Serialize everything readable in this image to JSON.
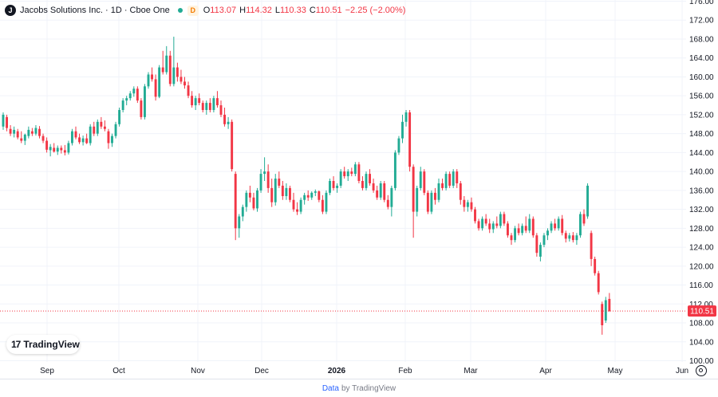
{
  "legend": {
    "symbol_icon": "jacobs-j-logo",
    "symbol_letter": "J",
    "title": "Jacobs Solutions Inc. · 1D · Cboe One",
    "badge": "D",
    "o_label": "O",
    "o_value": "113.07",
    "h_label": "H",
    "h_value": "114.32",
    "l_label": "L",
    "l_value": "110.33",
    "c_label": "C",
    "c_value": "110.51",
    "change": "−2.25 (−2.00%)"
  },
  "logo": {
    "mark": "17",
    "text": "TradingView"
  },
  "footer": {
    "link": "Data",
    "text": "by TradingView"
  },
  "colors": {
    "up": "#22ab94",
    "down": "#f23645",
    "grid": "#f0f3fa",
    "axis_text": "#131722"
  },
  "chart_data": {
    "type": "candlestick",
    "title": "Jacobs Solutions Inc. · 1D · Cboe One",
    "ylim": [
      100,
      176
    ],
    "y_ticks": [
      "100.00",
      "104.00",
      "108.00",
      "112.00",
      "116.00",
      "120.00",
      "124.00",
      "128.00",
      "132.00",
      "136.00",
      "140.00",
      "144.00",
      "148.00",
      "152.00",
      "156.00",
      "160.00",
      "164.00",
      "168.00",
      "172.00",
      "176.00"
    ],
    "x_labels": [
      "Sep",
      "Oct",
      "Nov",
      "Dec",
      "2026",
      "Feb",
      "Mar",
      "Apr",
      "May",
      "Jun"
    ],
    "last_price": "110.51",
    "grid": true,
    "candles": [
      {
        "o": 149.5,
        "h": 152.5,
        "l": 148.8,
        "c": 152.0
      },
      {
        "o": 151.5,
        "h": 152.0,
        "l": 148.5,
        "c": 149.2
      },
      {
        "o": 149.0,
        "h": 149.8,
        "l": 147.5,
        "c": 148.0
      },
      {
        "o": 148.0,
        "h": 149.5,
        "l": 147.2,
        "c": 148.8
      },
      {
        "o": 148.5,
        "h": 149.0,
        "l": 146.8,
        "c": 147.2
      },
      {
        "o": 147.0,
        "h": 148.5,
        "l": 146.0,
        "c": 146.5
      },
      {
        "o": 146.5,
        "h": 148.0,
        "l": 145.6,
        "c": 147.8
      },
      {
        "o": 147.5,
        "h": 149.5,
        "l": 147.0,
        "c": 148.8
      },
      {
        "o": 148.5,
        "h": 149.2,
        "l": 147.5,
        "c": 148.0
      },
      {
        "o": 148.0,
        "h": 149.8,
        "l": 147.6,
        "c": 149.2
      },
      {
        "o": 149.0,
        "h": 149.6,
        "l": 147.0,
        "c": 147.5
      },
      {
        "o": 147.5,
        "h": 148.0,
        "l": 146.0,
        "c": 146.5
      },
      {
        "o": 146.5,
        "h": 147.2,
        "l": 144.0,
        "c": 144.6
      },
      {
        "o": 144.5,
        "h": 145.8,
        "l": 143.2,
        "c": 145.2
      },
      {
        "o": 145.0,
        "h": 146.0,
        "l": 144.0,
        "c": 144.2
      },
      {
        "o": 144.2,
        "h": 145.5,
        "l": 143.5,
        "c": 145.0
      },
      {
        "o": 145.0,
        "h": 145.5,
        "l": 143.8,
        "c": 144.5
      },
      {
        "o": 144.5,
        "h": 145.6,
        "l": 143.4,
        "c": 144.0
      },
      {
        "o": 144.0,
        "h": 146.5,
        "l": 143.6,
        "c": 146.0
      },
      {
        "o": 146.0,
        "h": 149.0,
        "l": 145.5,
        "c": 148.5
      },
      {
        "o": 148.5,
        "h": 149.5,
        "l": 146.8,
        "c": 147.2
      },
      {
        "o": 147.2,
        "h": 148.0,
        "l": 145.8,
        "c": 146.2
      },
      {
        "o": 146.2,
        "h": 147.6,
        "l": 145.5,
        "c": 147.0
      },
      {
        "o": 147.0,
        "h": 148.0,
        "l": 145.8,
        "c": 146.0
      },
      {
        "o": 146.0,
        "h": 150.0,
        "l": 145.5,
        "c": 149.5
      },
      {
        "o": 149.5,
        "h": 150.5,
        "l": 147.5,
        "c": 148.0
      },
      {
        "o": 148.0,
        "h": 151.0,
        "l": 147.5,
        "c": 150.5
      },
      {
        "o": 150.5,
        "h": 151.5,
        "l": 149.0,
        "c": 149.5
      },
      {
        "o": 149.5,
        "h": 150.8,
        "l": 148.5,
        "c": 149.0
      },
      {
        "o": 148.5,
        "h": 149.0,
        "l": 144.8,
        "c": 146.0
      },
      {
        "o": 146.0,
        "h": 148.0,
        "l": 145.2,
        "c": 147.5
      },
      {
        "o": 147.5,
        "h": 150.5,
        "l": 147.0,
        "c": 150.0
      },
      {
        "o": 150.0,
        "h": 153.5,
        "l": 149.5,
        "c": 153.0
      },
      {
        "o": 153.0,
        "h": 155.5,
        "l": 152.5,
        "c": 155.0
      },
      {
        "o": 155.0,
        "h": 156.0,
        "l": 154.0,
        "c": 155.5
      },
      {
        "o": 155.5,
        "h": 157.0,
        "l": 155.0,
        "c": 156.5
      },
      {
        "o": 156.5,
        "h": 158.0,
        "l": 155.8,
        "c": 157.5
      },
      {
        "o": 157.5,
        "h": 158.0,
        "l": 154.5,
        "c": 155.0
      },
      {
        "o": 155.0,
        "h": 155.5,
        "l": 151.0,
        "c": 151.5
      },
      {
        "o": 151.5,
        "h": 158.5,
        "l": 151.0,
        "c": 158.0
      },
      {
        "o": 158.0,
        "h": 161.0,
        "l": 157.5,
        "c": 160.5
      },
      {
        "o": 160.5,
        "h": 162.0,
        "l": 159.0,
        "c": 159.5
      },
      {
        "o": 159.5,
        "h": 160.5,
        "l": 155.0,
        "c": 155.8
      },
      {
        "o": 155.8,
        "h": 162.5,
        "l": 155.5,
        "c": 162.0
      },
      {
        "o": 162.0,
        "h": 165.5,
        "l": 160.5,
        "c": 161.0
      },
      {
        "o": 161.0,
        "h": 166.5,
        "l": 160.5,
        "c": 164.5
      },
      {
        "o": 164.5,
        "h": 165.5,
        "l": 158.0,
        "c": 158.5
      },
      {
        "o": 158.5,
        "h": 168.5,
        "l": 158.0,
        "c": 162.0
      },
      {
        "o": 162.0,
        "h": 163.0,
        "l": 159.0,
        "c": 160.0
      },
      {
        "o": 160.0,
        "h": 161.5,
        "l": 158.5,
        "c": 159.0
      },
      {
        "o": 159.0,
        "h": 160.0,
        "l": 157.5,
        "c": 158.2
      },
      {
        "o": 158.2,
        "h": 159.0,
        "l": 155.5,
        "c": 156.0
      },
      {
        "o": 156.0,
        "h": 157.0,
        "l": 153.5,
        "c": 154.0
      },
      {
        "o": 154.0,
        "h": 156.0,
        "l": 153.0,
        "c": 155.5
      },
      {
        "o": 155.5,
        "h": 156.5,
        "l": 154.0,
        "c": 154.5
      },
      {
        "o": 154.5,
        "h": 155.0,
        "l": 152.5,
        "c": 153.0
      },
      {
        "o": 153.0,
        "h": 155.0,
        "l": 152.0,
        "c": 154.5
      },
      {
        "o": 154.5,
        "h": 155.5,
        "l": 152.5,
        "c": 153.0
      },
      {
        "o": 153.0,
        "h": 156.0,
        "l": 152.5,
        "c": 155.5
      },
      {
        "o": 155.5,
        "h": 157.0,
        "l": 153.5,
        "c": 154.0
      },
      {
        "o": 154.0,
        "h": 155.0,
        "l": 151.5,
        "c": 152.0
      },
      {
        "o": 152.0,
        "h": 153.5,
        "l": 149.5,
        "c": 150.0
      },
      {
        "o": 150.0,
        "h": 151.5,
        "l": 149.0,
        "c": 150.5
      },
      {
        "o": 150.5,
        "h": 151.0,
        "l": 140.0,
        "c": 140.5
      },
      {
        "o": 139.5,
        "h": 140.0,
        "l": 125.5,
        "c": 128.0
      },
      {
        "o": 128.0,
        "h": 131.0,
        "l": 126.0,
        "c": 130.5
      },
      {
        "o": 130.5,
        "h": 133.0,
        "l": 129.5,
        "c": 132.5
      },
      {
        "o": 132.5,
        "h": 136.0,
        "l": 131.5,
        "c": 135.5
      },
      {
        "o": 135.5,
        "h": 137.0,
        "l": 133.5,
        "c": 134.5
      },
      {
        "o": 134.5,
        "h": 135.5,
        "l": 131.8,
        "c": 132.2
      },
      {
        "o": 132.2,
        "h": 136.5,
        "l": 131.5,
        "c": 136.0
      },
      {
        "o": 136.0,
        "h": 140.5,
        "l": 135.5,
        "c": 139.5
      },
      {
        "o": 139.5,
        "h": 143.0,
        "l": 138.0,
        "c": 140.0
      },
      {
        "o": 140.0,
        "h": 141.5,
        "l": 135.5,
        "c": 136.5
      },
      {
        "o": 136.5,
        "h": 138.5,
        "l": 132.5,
        "c": 133.5
      },
      {
        "o": 133.5,
        "h": 139.5,
        "l": 132.8,
        "c": 138.5
      },
      {
        "o": 138.5,
        "h": 140.0,
        "l": 136.5,
        "c": 137.0
      },
      {
        "o": 137.0,
        "h": 138.0,
        "l": 134.0,
        "c": 134.8
      },
      {
        "o": 134.8,
        "h": 137.5,
        "l": 134.0,
        "c": 136.5
      },
      {
        "o": 136.5,
        "h": 137.0,
        "l": 133.5,
        "c": 134.0
      },
      {
        "o": 134.0,
        "h": 135.5,
        "l": 131.5,
        "c": 132.0
      },
      {
        "o": 132.0,
        "h": 133.5,
        "l": 130.8,
        "c": 131.5
      },
      {
        "o": 131.5,
        "h": 134.5,
        "l": 131.0,
        "c": 134.0
      },
      {
        "o": 134.0,
        "h": 135.5,
        "l": 133.0,
        "c": 135.0
      },
      {
        "o": 135.0,
        "h": 136.0,
        "l": 133.8,
        "c": 134.5
      },
      {
        "o": 134.5,
        "h": 135.8,
        "l": 134.0,
        "c": 135.5
      },
      {
        "o": 135.5,
        "h": 136.2,
        "l": 134.8,
        "c": 135.8
      },
      {
        "o": 135.8,
        "h": 136.0,
        "l": 133.5,
        "c": 134.0
      },
      {
        "o": 134.0,
        "h": 135.0,
        "l": 131.0,
        "c": 131.5
      },
      {
        "o": 131.5,
        "h": 136.0,
        "l": 131.0,
        "c": 135.5
      },
      {
        "o": 135.5,
        "h": 138.5,
        "l": 135.0,
        "c": 138.0
      },
      {
        "o": 138.0,
        "h": 139.0,
        "l": 136.0,
        "c": 136.5
      },
      {
        "o": 136.5,
        "h": 137.5,
        "l": 135.5,
        "c": 137.0
      },
      {
        "o": 137.0,
        "h": 140.5,
        "l": 136.5,
        "c": 140.0
      },
      {
        "o": 140.0,
        "h": 141.0,
        "l": 138.5,
        "c": 139.0
      },
      {
        "o": 139.0,
        "h": 140.5,
        "l": 138.0,
        "c": 140.0
      },
      {
        "o": 140.0,
        "h": 140.8,
        "l": 139.0,
        "c": 139.5
      },
      {
        "o": 139.5,
        "h": 142.0,
        "l": 139.0,
        "c": 141.5
      },
      {
        "o": 141.5,
        "h": 142.0,
        "l": 137.5,
        "c": 138.0
      },
      {
        "o": 138.0,
        "h": 139.0,
        "l": 136.0,
        "c": 136.5
      },
      {
        "o": 136.5,
        "h": 140.0,
        "l": 136.0,
        "c": 139.5
      },
      {
        "o": 139.5,
        "h": 140.5,
        "l": 137.0,
        "c": 137.5
      },
      {
        "o": 137.5,
        "h": 138.5,
        "l": 135.5,
        "c": 136.0
      },
      {
        "o": 136.0,
        "h": 137.0,
        "l": 134.0,
        "c": 134.5
      },
      {
        "o": 134.5,
        "h": 138.0,
        "l": 134.0,
        "c": 137.5
      },
      {
        "o": 137.5,
        "h": 138.0,
        "l": 133.5,
        "c": 134.0
      },
      {
        "o": 134.0,
        "h": 135.0,
        "l": 132.0,
        "c": 132.5
      },
      {
        "o": 132.5,
        "h": 137.0,
        "l": 130.5,
        "c": 136.5
      },
      {
        "o": 136.5,
        "h": 144.5,
        "l": 136.0,
        "c": 144.0
      },
      {
        "o": 144.0,
        "h": 147.5,
        "l": 143.5,
        "c": 147.0
      },
      {
        "o": 147.0,
        "h": 152.0,
        "l": 146.0,
        "c": 150.5
      },
      {
        "o": 150.5,
        "h": 153.0,
        "l": 149.5,
        "c": 152.5
      },
      {
        "o": 152.5,
        "h": 153.0,
        "l": 140.0,
        "c": 141.0
      },
      {
        "o": 141.0,
        "h": 141.5,
        "l": 126.0,
        "c": 131.5
      },
      {
        "o": 131.5,
        "h": 137.0,
        "l": 130.5,
        "c": 136.5
      },
      {
        "o": 136.5,
        "h": 141.0,
        "l": 136.0,
        "c": 140.0
      },
      {
        "o": 140.0,
        "h": 140.5,
        "l": 135.0,
        "c": 135.5
      },
      {
        "o": 135.5,
        "h": 136.0,
        "l": 131.0,
        "c": 131.5
      },
      {
        "o": 131.5,
        "h": 136.0,
        "l": 131.0,
        "c": 135.5
      },
      {
        "o": 135.5,
        "h": 136.5,
        "l": 133.0,
        "c": 134.0
      },
      {
        "o": 134.0,
        "h": 138.5,
        "l": 133.5,
        "c": 137.5
      },
      {
        "o": 137.5,
        "h": 138.5,
        "l": 136.0,
        "c": 136.5
      },
      {
        "o": 136.5,
        "h": 140.0,
        "l": 136.0,
        "c": 139.5
      },
      {
        "o": 139.5,
        "h": 140.0,
        "l": 136.5,
        "c": 137.0
      },
      {
        "o": 137.0,
        "h": 140.5,
        "l": 136.5,
        "c": 140.0
      },
      {
        "o": 140.0,
        "h": 140.5,
        "l": 136.5,
        "c": 137.5
      },
      {
        "o": 137.5,
        "h": 138.0,
        "l": 133.0,
        "c": 134.0
      },
      {
        "o": 134.0,
        "h": 134.8,
        "l": 131.5,
        "c": 132.5
      },
      {
        "o": 132.5,
        "h": 134.0,
        "l": 131.5,
        "c": 133.5
      },
      {
        "o": 133.5,
        "h": 134.5,
        "l": 131.5,
        "c": 132.0
      },
      {
        "o": 132.0,
        "h": 132.5,
        "l": 129.0,
        "c": 129.5
      },
      {
        "o": 129.5,
        "h": 130.0,
        "l": 127.5,
        "c": 128.0
      },
      {
        "o": 128.0,
        "h": 130.5,
        "l": 127.5,
        "c": 130.0
      },
      {
        "o": 130.0,
        "h": 131.0,
        "l": 128.5,
        "c": 129.0
      },
      {
        "o": 129.0,
        "h": 130.0,
        "l": 127.0,
        "c": 127.8
      },
      {
        "o": 127.8,
        "h": 129.5,
        "l": 127.0,
        "c": 129.0
      },
      {
        "o": 129.0,
        "h": 130.5,
        "l": 128.0,
        "c": 128.5
      },
      {
        "o": 128.5,
        "h": 131.5,
        "l": 128.0,
        "c": 131.0
      },
      {
        "o": 131.0,
        "h": 131.5,
        "l": 128.5,
        "c": 129.0
      },
      {
        "o": 129.0,
        "h": 129.5,
        "l": 126.0,
        "c": 126.5
      },
      {
        "o": 126.5,
        "h": 127.0,
        "l": 124.5,
        "c": 125.5
      },
      {
        "o": 125.5,
        "h": 128.5,
        "l": 125.0,
        "c": 128.0
      },
      {
        "o": 128.0,
        "h": 129.0,
        "l": 126.5,
        "c": 127.0
      },
      {
        "o": 127.0,
        "h": 129.0,
        "l": 126.5,
        "c": 128.5
      },
      {
        "o": 128.5,
        "h": 130.5,
        "l": 127.0,
        "c": 127.5
      },
      {
        "o": 127.5,
        "h": 131.0,
        "l": 127.0,
        "c": 130.0
      },
      {
        "o": 130.0,
        "h": 130.5,
        "l": 126.0,
        "c": 126.5
      },
      {
        "o": 126.5,
        "h": 127.0,
        "l": 122.0,
        "c": 122.8
      },
      {
        "o": 122.0,
        "h": 125.0,
        "l": 121.0,
        "c": 124.5
      },
      {
        "o": 124.5,
        "h": 127.0,
        "l": 124.0,
        "c": 126.5
      },
      {
        "o": 126.5,
        "h": 128.0,
        "l": 125.5,
        "c": 127.5
      },
      {
        "o": 127.5,
        "h": 129.5,
        "l": 127.0,
        "c": 129.0
      },
      {
        "o": 129.0,
        "h": 130.0,
        "l": 127.5,
        "c": 128.0
      },
      {
        "o": 128.0,
        "h": 130.5,
        "l": 127.5,
        "c": 130.0
      },
      {
        "o": 130.0,
        "h": 130.8,
        "l": 126.5,
        "c": 127.0
      },
      {
        "o": 127.0,
        "h": 127.5,
        "l": 125.0,
        "c": 125.8
      },
      {
        "o": 125.8,
        "h": 127.0,
        "l": 125.2,
        "c": 126.5
      },
      {
        "o": 126.5,
        "h": 127.2,
        "l": 125.0,
        "c": 125.5
      },
      {
        "o": 125.5,
        "h": 127.0,
        "l": 124.5,
        "c": 126.5
      },
      {
        "o": 126.5,
        "h": 131.5,
        "l": 126.0,
        "c": 131.0
      },
      {
        "o": 131.0,
        "h": 132.0,
        "l": 128.5,
        "c": 129.0
      },
      {
        "o": 130.5,
        "h": 137.5,
        "l": 130.0,
        "c": 137.0
      },
      {
        "o": 127.0,
        "h": 127.5,
        "l": 120.0,
        "c": 121.5
      },
      {
        "o": 121.5,
        "h": 122.0,
        "l": 118.0,
        "c": 118.5
      },
      {
        "o": 118.5,
        "h": 119.0,
        "l": 114.0,
        "c": 114.5
      },
      {
        "o": 112.0,
        "h": 112.5,
        "l": 105.5,
        "c": 107.5
      },
      {
        "o": 108.5,
        "h": 113.5,
        "l": 108.0,
        "c": 112.8
      },
      {
        "o": 113.07,
        "h": 114.32,
        "l": 110.33,
        "c": 110.51
      }
    ]
  }
}
